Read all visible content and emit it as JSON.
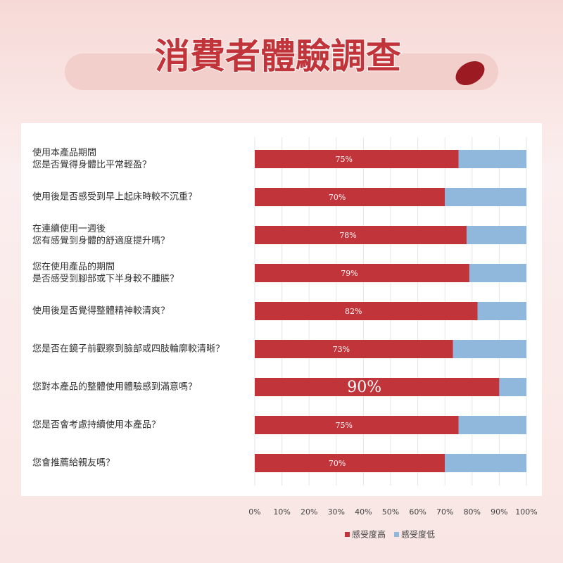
{
  "chart_data": {
    "type": "stacked_bar_horizontal",
    "title": "消費者體驗調查",
    "categories": [
      "使用本產品期間\n您是否覺得身體比平常輕盈？",
      "使用後是否感受到早上起床時較不沉重？",
      "在連續使用一週後\n您有感覺到身體的舒適度提升嗎？",
      "您在使用產品的期間\n是否感受到腳部或下半身較不腫脹？",
      "使用後是否覺得整體精神較清爽？",
      "您是否在鏡子前觀察到臉部或四肢輪廓較清晰？",
      "您對本產品的整體使用體驗感到滿意嗎？",
      "您是否會考慮持續使用本產品？",
      "您會推薦給親友嗎？"
    ],
    "series": [
      {
        "name": "感受度高",
        "color": "#c0343a",
        "values": [
          75,
          70,
          78,
          79,
          82,
          73,
          90,
          75,
          70
        ],
        "value_labels": [
          "75%",
          "70%",
          "78%",
          "79%",
          "82%",
          "73%",
          "90%",
          "75%",
          "70%"
        ]
      },
      {
        "name": "感受度低",
        "color": "#8fb8dc",
        "values": [
          25,
          30,
          22,
          21,
          18,
          27,
          10,
          25,
          30
        ]
      }
    ],
    "xlim": [
      0,
      100
    ],
    "xticks": [
      {
        "value": 0,
        "label": "0%"
      },
      {
        "value": 10,
        "label": "10%"
      },
      {
        "value": 20,
        "label": "20%"
      },
      {
        "value": 30,
        "label": "30%"
      },
      {
        "value": 40,
        "label": "40%"
      },
      {
        "value": 50,
        "label": "50%"
      },
      {
        "value": 60,
        "label": "60%"
      },
      {
        "value": 70,
        "label": "70%"
      },
      {
        "value": 80,
        "label": "80%"
      },
      {
        "value": 90,
        "label": "90%"
      },
      {
        "value": 100,
        "label": "100%"
      }
    ],
    "grid": true,
    "legend": "bottom"
  }
}
